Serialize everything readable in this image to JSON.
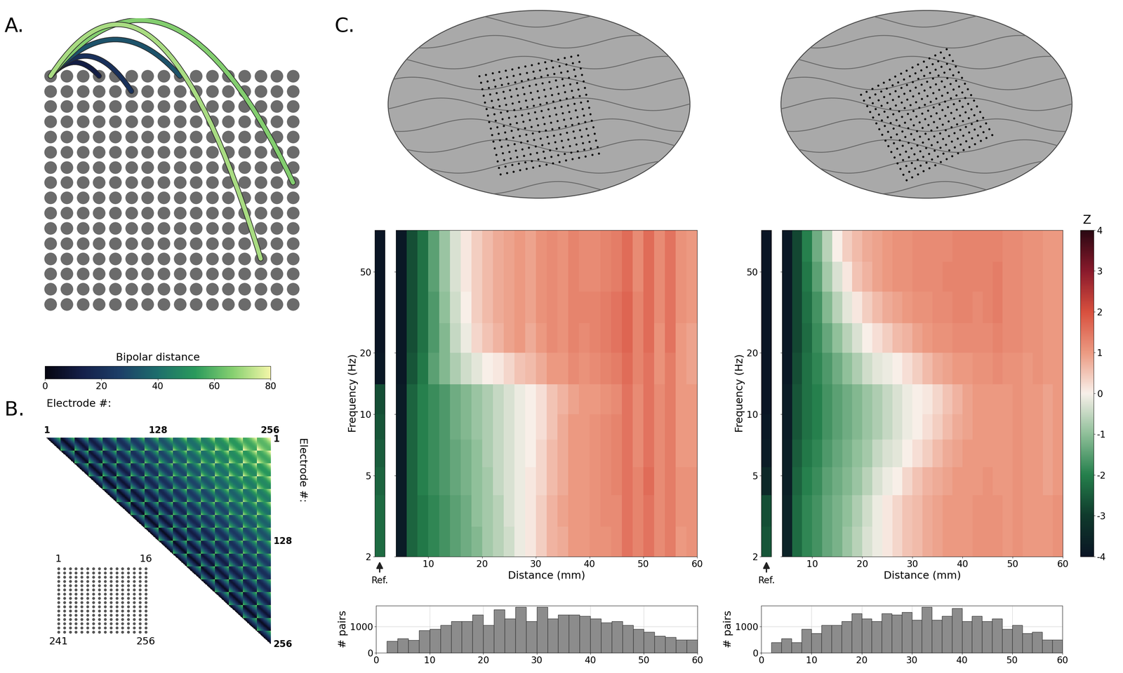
{
  "panel_labels": [
    "A.",
    "B.",
    "C."
  ],
  "grid": {
    "rows": 16,
    "cols": 16,
    "electrode_spacing_mm": 4
  },
  "panel_a": {
    "arcs": [
      {
        "from": [
          0,
          0
        ],
        "to": [
          0,
          3
        ]
      },
      {
        "from": [
          0,
          0
        ],
        "to": [
          1,
          5
        ]
      },
      {
        "from": [
          0,
          0
        ],
        "to": [
          0,
          8
        ]
      },
      {
        "from": [
          0,
          0
        ],
        "to": [
          7,
          15
        ]
      },
      {
        "from": [
          0,
          0
        ],
        "to": [
          12,
          13
        ]
      }
    ],
    "colorbar": {
      "label": "Bipolar distance",
      "range": [
        0,
        80
      ],
      "ticks": [
        0,
        20,
        40,
        60,
        80
      ]
    }
  },
  "panel_b": {
    "label": "Electrode #:",
    "ticks": [
      1,
      128,
      256
    ],
    "inset_labels": [
      1,
      16,
      241,
      256
    ]
  },
  "z_colorbar": {
    "label": "Z",
    "range": [
      -4,
      4
    ],
    "ticks": [
      -4,
      -3,
      -2,
      -1,
      0,
      1,
      2,
      3,
      4
    ]
  },
  "chart_data": [
    {
      "type": "heatmap",
      "x_label": "Distance (mm)",
      "y_label": "Frequency (Hz)",
      "log": "y",
      "xlim": [
        4,
        60
      ],
      "xticks": [
        10,
        20,
        30,
        40,
        50,
        60
      ],
      "ylim": [
        2,
        80
      ],
      "yticks": [
        2,
        5,
        10,
        20,
        50
      ],
      "x_edges": [
        4,
        6,
        8,
        10,
        12,
        14,
        16,
        18,
        20,
        22,
        24,
        26,
        28,
        30,
        32,
        34,
        36,
        38,
        40,
        42,
        44,
        46,
        48,
        50,
        52,
        54,
        56,
        58,
        60
      ],
      "y_edges": [
        2,
        2.8,
        4,
        5.5,
        7.5,
        10,
        14,
        20,
        28,
        40,
        56,
        80
      ],
      "reference": {
        "label": "Ref.",
        "values": [
          -2.3,
          -2.3,
          -2.4,
          -2.5,
          -2.6,
          -2.7,
          -3.9,
          -4,
          -4,
          -4,
          -4
        ]
      },
      "cells": [
        [
          -3.8,
          -2.4,
          -2.1,
          -1.9,
          -1.7,
          -1.5,
          -1.3,
          -1.1,
          -0.8,
          -0.6,
          -0.4,
          -0.1,
          0.1,
          0.4,
          0.7,
          0.8,
          1.0,
          1.0,
          1.1,
          1.1,
          1.2,
          1.5,
          1.3,
          1.5,
          1.2,
          1.4,
          1.0,
          1.1
        ],
        [
          -3.8,
          -2.4,
          -2.1,
          -1.9,
          -1.7,
          -1.5,
          -1.3,
          -1.0,
          -0.8,
          -0.6,
          -0.3,
          -0.1,
          0.1,
          0.4,
          0.7,
          0.9,
          1.0,
          1.0,
          1.1,
          1.2,
          1.2,
          1.5,
          1.3,
          1.5,
          1.2,
          1.4,
          1.1,
          1.1
        ],
        [
          -3.8,
          -2.4,
          -2.0,
          -1.8,
          -1.6,
          -1.4,
          -1.2,
          -1.0,
          -0.8,
          -0.5,
          -0.3,
          -0.1,
          0.1,
          0.3,
          0.6,
          0.8,
          1.0,
          1.0,
          1.1,
          1.2,
          1.3,
          1.5,
          1.3,
          1.6,
          1.2,
          1.4,
          1.1,
          1.1
        ],
        [
          -3.8,
          -2.4,
          -2.0,
          -1.8,
          -1.6,
          -1.4,
          -1.2,
          -1.0,
          -0.7,
          -0.5,
          -0.3,
          -0.1,
          0.0,
          0.3,
          0.6,
          0.8,
          1.0,
          1.0,
          1.1,
          1.2,
          1.3,
          1.5,
          1.2,
          1.5,
          1.2,
          1.4,
          1.0,
          1.0
        ],
        [
          -3.8,
          -2.4,
          -2.0,
          -1.8,
          -1.6,
          -1.3,
          -1.1,
          -0.9,
          -0.7,
          -0.5,
          -0.3,
          -0.1,
          0.0,
          0.2,
          0.5,
          0.8,
          1.0,
          1.0,
          1.1,
          1.2,
          1.3,
          1.5,
          1.2,
          1.5,
          1.2,
          1.4,
          1.0,
          1.0
        ],
        [
          -3.8,
          -2.4,
          -2.0,
          -1.8,
          -1.6,
          -1.3,
          -1.1,
          -0.9,
          -0.7,
          -0.5,
          -0.3,
          -0.1,
          0.0,
          0.2,
          0.5,
          0.7,
          0.9,
          1.0,
          1.0,
          1.1,
          1.2,
          1.5,
          1.2,
          1.5,
          1.2,
          1.4,
          1.0,
          1.0
        ],
        [
          -3.9,
          -2.6,
          -2.1,
          -1.5,
          -1.1,
          -0.7,
          -0.4,
          -0.2,
          0.0,
          0.1,
          0.3,
          0.5,
          0.6,
          0.8,
          1.0,
          1.0,
          1.2,
          1.1,
          1.2,
          1.3,
          1.4,
          1.6,
          1.3,
          1.5,
          1.1,
          1.4,
          1.0,
          0.9
        ],
        [
          -3.9,
          -2.7,
          -2.2,
          -1.6,
          -1.1,
          -0.5,
          -0.1,
          0.3,
          0.5,
          0.7,
          0.9,
          1.0,
          0.8,
          1.0,
          1.2,
          1.1,
          1.3,
          1.2,
          1.3,
          1.4,
          1.5,
          1.7,
          1.3,
          1.6,
          1.1,
          1.5,
          1.0,
          0.9
        ],
        [
          -3.9,
          -2.7,
          -2.2,
          -1.6,
          -1.0,
          -0.4,
          0.0,
          0.4,
          0.6,
          0.8,
          0.9,
          1.0,
          0.9,
          1.1,
          1.2,
          1.1,
          1.3,
          1.3,
          1.3,
          1.4,
          1.5,
          1.7,
          1.3,
          1.6,
          1.2,
          1.5,
          1.1,
          1.0
        ],
        [
          -3.9,
          -2.7,
          -2.2,
          -1.5,
          -0.9,
          -0.3,
          0.1,
          0.4,
          0.6,
          0.8,
          0.9,
          1.0,
          0.9,
          1.1,
          1.2,
          1.1,
          1.3,
          1.2,
          1.2,
          1.3,
          1.4,
          1.6,
          1.2,
          1.6,
          1.2,
          1.5,
          1.1,
          1.0
        ],
        [
          -3.9,
          -2.7,
          -2.2,
          -1.5,
          -0.9,
          -0.3,
          0.1,
          0.4,
          0.6,
          0.8,
          0.9,
          1.0,
          0.9,
          1.1,
          1.2,
          1.1,
          1.3,
          1.2,
          1.2,
          1.3,
          1.4,
          1.6,
          1.2,
          1.6,
          1.2,
          1.5,
          1.1,
          1.0
        ]
      ]
    },
    {
      "type": "heatmap",
      "x_label": "Distance (mm)",
      "y_label": "Frequency (Hz)",
      "log": "y",
      "xlim": [
        4,
        60
      ],
      "xticks": [
        10,
        20,
        30,
        40,
        50,
        60
      ],
      "ylim": [
        2,
        80
      ],
      "yticks": [
        2,
        5,
        10,
        20,
        50
      ],
      "x_edges": [
        4,
        6,
        8,
        10,
        12,
        14,
        16,
        18,
        20,
        22,
        24,
        26,
        28,
        30,
        32,
        34,
        36,
        38,
        40,
        42,
        44,
        46,
        48,
        50,
        52,
        54,
        56,
        58,
        60
      ],
      "y_edges": [
        2,
        2.8,
        4,
        5.5,
        7.5,
        10,
        14,
        20,
        28,
        40,
        56,
        80
      ],
      "reference": {
        "label": "Ref.",
        "values": [
          -2.6,
          -2.7,
          -3.5,
          -3.8,
          -3.9,
          -4,
          -4,
          -4,
          -4,
          -4,
          -4
        ]
      },
      "cells": [
        [
          -3.6,
          -2.3,
          -1.9,
          -1.7,
          -1.4,
          -1.2,
          -0.9,
          -0.6,
          -0.3,
          -0.1,
          0.1,
          0.3,
          0.5,
          0.6,
          0.8,
          0.9,
          1.0,
          1.0,
          1.0,
          1.1,
          1.1,
          1.1,
          1.0,
          1.1,
          1.0,
          1.0,
          1.0,
          1.1
        ],
        [
          -3.6,
          -2.3,
          -1.9,
          -1.7,
          -1.4,
          -1.2,
          -1.0,
          -0.7,
          -0.4,
          -0.1,
          0.1,
          0.3,
          0.5,
          0.6,
          0.8,
          0.9,
          1.0,
          1.0,
          1.0,
          1.1,
          1.1,
          1.1,
          1.0,
          1.1,
          1.0,
          1.0,
          1.0,
          1.1
        ],
        [
          -3.7,
          -2.4,
          -2.0,
          -1.8,
          -1.5,
          -1.3,
          -1.1,
          -0.9,
          -0.6,
          -0.3,
          -0.1,
          0.0,
          0.3,
          0.5,
          0.7,
          0.8,
          0.9,
          1.0,
          1.0,
          1.0,
          1.1,
          1.0,
          1.0,
          1.1,
          1.0,
          1.0,
          0.9,
          1.0
        ],
        [
          -3.7,
          -2.5,
          -2.1,
          -1.9,
          -1.6,
          -1.4,
          -1.2,
          -1.0,
          -0.8,
          -0.5,
          -0.3,
          -0.2,
          0.0,
          0.2,
          0.4,
          0.6,
          0.8,
          0.9,
          1.0,
          1.0,
          1.0,
          1.0,
          1.0,
          1.1,
          1.0,
          1.0,
          0.9,
          1.0
        ],
        [
          -3.8,
          -2.6,
          -2.2,
          -2.0,
          -1.7,
          -1.5,
          -1.3,
          -1.1,
          -0.9,
          -0.7,
          -0.5,
          -0.3,
          -0.1,
          0.0,
          0.2,
          0.4,
          0.6,
          0.8,
          0.9,
          1.0,
          1.0,
          1.0,
          1.0,
          1.1,
          1.0,
          1.0,
          0.9,
          1.0
        ],
        [
          -3.8,
          -2.6,
          -2.2,
          -2.0,
          -1.7,
          -1.5,
          -1.3,
          -1.1,
          -0.9,
          -0.7,
          -0.5,
          -0.3,
          -0.1,
          0.0,
          0.1,
          0.3,
          0.5,
          0.7,
          0.9,
          1.0,
          1.0,
          1.0,
          1.0,
          1.1,
          1.0,
          1.0,
          0.9,
          1.0
        ],
        [
          -3.9,
          -2.7,
          -2.2,
          -1.9,
          -1.6,
          -1.3,
          -1.0,
          -0.7,
          -0.4,
          -0.2,
          -0.1,
          0.0,
          0.2,
          0.4,
          0.6,
          0.8,
          0.9,
          1.0,
          1.0,
          1.1,
          1.1,
          1.2,
          1.1,
          1.1,
          1.0,
          1.1,
          1.0,
          1.0
        ],
        [
          -3.9,
          -2.8,
          -2.3,
          -1.8,
          -1.4,
          -1.0,
          -0.6,
          -0.3,
          0.0,
          0.2,
          0.4,
          0.6,
          0.7,
          0.9,
          1.0,
          1.1,
          1.1,
          1.2,
          1.2,
          1.2,
          1.2,
          1.3,
          1.2,
          1.2,
          1.1,
          1.1,
          1.0,
          1.0
        ],
        [
          -3.9,
          -2.8,
          -2.2,
          -1.7,
          -1.1,
          -0.6,
          -0.2,
          0.1,
          0.4,
          0.6,
          0.8,
          0.9,
          1.0,
          1.1,
          1.1,
          1.2,
          1.2,
          1.3,
          1.3,
          1.2,
          1.3,
          1.4,
          1.2,
          1.2,
          1.1,
          1.1,
          1.0,
          1.0
        ],
        [
          -3.9,
          -2.8,
          -2.1,
          -1.5,
          -0.8,
          -0.3,
          0.1,
          0.5,
          0.7,
          0.9,
          1.0,
          1.1,
          1.1,
          1.2,
          1.2,
          1.2,
          1.3,
          1.3,
          1.3,
          1.3,
          1.3,
          1.4,
          1.2,
          1.2,
          1.1,
          1.1,
          1.0,
          1.0
        ],
        [
          -3.9,
          -2.8,
          -2.0,
          -1.3,
          -0.6,
          0.0,
          0.4,
          0.6,
          0.8,
          0.9,
          1.0,
          1.1,
          1.1,
          1.2,
          1.2,
          1.2,
          1.2,
          1.3,
          1.3,
          1.3,
          1.3,
          1.3,
          1.2,
          1.2,
          1.1,
          1.1,
          1.0,
          1.0
        ]
      ]
    },
    {
      "type": "histogram",
      "y_label": "# pairs",
      "grid": true,
      "bins": [
        2,
        4,
        6,
        8,
        10,
        12,
        14,
        16,
        18,
        20,
        22,
        24,
        26,
        28,
        30,
        32,
        34,
        36,
        38,
        40,
        42,
        44,
        46,
        48,
        50,
        52,
        54,
        56,
        58,
        60
      ],
      "counts": [
        450,
        550,
        480,
        850,
        900,
        1050,
        1200,
        1200,
        1450,
        1050,
        1650,
        1300,
        1750,
        1200,
        1750,
        1300,
        1450,
        1450,
        1400,
        1300,
        1150,
        1200,
        1050,
        900,
        800,
        650,
        600,
        500,
        500
      ],
      "xlim": [
        0,
        60
      ],
      "xticks": [
        0,
        10,
        20,
        30,
        40,
        50,
        60
      ],
      "ylim": [
        0,
        1800
      ],
      "yticks": [
        0,
        1000
      ]
    },
    {
      "type": "histogram",
      "y_label": "# pairs",
      "grid": true,
      "bins": [
        2,
        4,
        6,
        8,
        10,
        12,
        14,
        16,
        18,
        20,
        22,
        24,
        26,
        28,
        30,
        32,
        34,
        36,
        38,
        40,
        42,
        44,
        46,
        48,
        50,
        52,
        54,
        56,
        58,
        60
      ],
      "counts": [
        400,
        550,
        400,
        900,
        750,
        1050,
        1050,
        1200,
        1500,
        1300,
        1200,
        1500,
        1450,
        1550,
        1250,
        1750,
        1250,
        1400,
        1700,
        1200,
        1400,
        1200,
        1300,
        900,
        1050,
        750,
        800,
        500,
        500
      ],
      "xlim": [
        0,
        60
      ],
      "xticks": [
        0,
        10,
        20,
        30,
        40,
        50,
        60
      ],
      "ylim": [
        0,
        1800
      ],
      "yticks": [
        0,
        1000
      ]
    }
  ]
}
